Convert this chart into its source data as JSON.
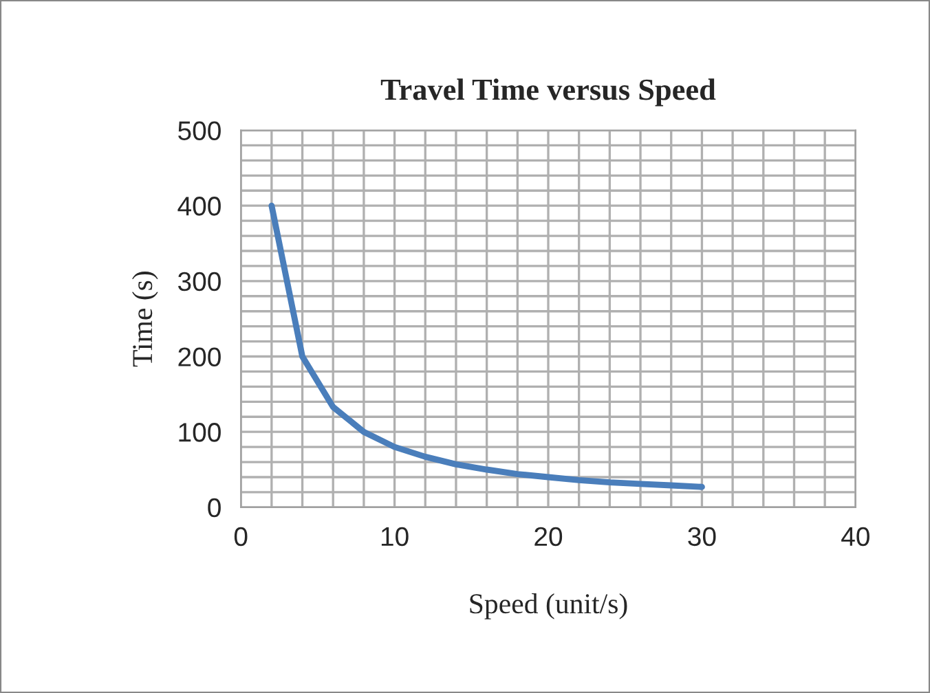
{
  "chart_data": {
    "type": "line",
    "title": "Travel Time versus Speed",
    "xlabel": "Speed (unit/s)",
    "ylabel": "Time (s)",
    "x": [
      2,
      4,
      6,
      8,
      10,
      12,
      14,
      16,
      18,
      20,
      22,
      24,
      26,
      28,
      30
    ],
    "series": [
      {
        "color": "#4a7ebb",
        "values": [
          400,
          200,
          133,
          100,
          80,
          67,
          57,
          50,
          44,
          40,
          36,
          33,
          31,
          29,
          27
        ]
      }
    ],
    "xlim": [
      0,
      40
    ],
    "xticks": [
      0,
      {
        "value": 2,
        "label": null
      },
      {
        "value": 4,
        "label": null
      },
      {
        "value": 6,
        "label": null
      },
      {
        "value": 8,
        "label": null
      },
      10,
      {
        "value": 12,
        "label": null
      },
      {
        "value": 14,
        "label": null
      },
      {
        "value": 16,
        "label": null
      },
      {
        "value": 18,
        "label": null
      },
      20,
      {
        "value": 22,
        "label": null
      },
      {
        "value": 24,
        "label": null
      },
      {
        "value": 26,
        "label": null
      },
      {
        "value": 28,
        "label": null
      },
      30,
      {
        "value": 32,
        "label": null
      },
      {
        "value": 34,
        "label": null
      },
      {
        "value": 36,
        "label": null
      },
      {
        "value": 38,
        "label": null
      },
      40
    ],
    "ylim": [
      0,
      500
    ],
    "yticks": [
      0,
      {
        "value": 20,
        "label": null
      },
      {
        "value": 40,
        "label": null
      },
      {
        "value": 60,
        "label": null
      },
      {
        "value": 80,
        "label": null
      },
      100,
      {
        "value": 120,
        "label": null
      },
      {
        "value": 140,
        "label": null
      },
      {
        "value": 160,
        "label": null
      },
      {
        "value": 180,
        "label": null
      },
      200,
      {
        "value": 220,
        "label": null
      },
      {
        "value": 240,
        "label": null
      },
      {
        "value": 260,
        "label": null
      },
      {
        "value": 280,
        "label": null
      },
      300,
      {
        "value": 320,
        "label": null
      },
      {
        "value": 340,
        "label": null
      },
      {
        "value": 360,
        "label": null
      },
      {
        "value": 380,
        "label": null
      },
      400,
      {
        "value": 420,
        "label": null
      },
      {
        "value": 440,
        "label": null
      },
      {
        "value": 460,
        "label": null
      },
      {
        "value": 480,
        "label": null
      },
      500
    ],
    "grid": true,
    "marker": "none",
    "line_style": "solid",
    "legend": false
  }
}
